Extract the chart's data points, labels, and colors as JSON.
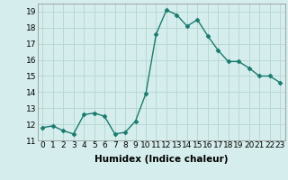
{
  "x": [
    0,
    1,
    2,
    3,
    4,
    5,
    6,
    7,
    8,
    9,
    10,
    11,
    12,
    13,
    14,
    15,
    16,
    17,
    18,
    19,
    20,
    21,
    22,
    23
  ],
  "y": [
    11.8,
    11.9,
    11.6,
    11.4,
    12.6,
    12.7,
    12.5,
    11.4,
    11.5,
    12.2,
    13.9,
    17.6,
    19.1,
    18.8,
    18.1,
    18.5,
    17.5,
    16.6,
    15.9,
    15.9,
    15.5,
    15.0,
    15.0,
    14.6
  ],
  "line_color": "#1a7a6e",
  "marker": "D",
  "marker_size": 2.5,
  "bg_color": "#d5eeed",
  "grid_color": "#b8d8d4",
  "xlabel": "Humidex (Indice chaleur)",
  "ylim": [
    11,
    19.5
  ],
  "xlim": [
    -0.5,
    23.5
  ],
  "yticks": [
    11,
    12,
    13,
    14,
    15,
    16,
    17,
    18,
    19
  ],
  "xticks": [
    0,
    1,
    2,
    3,
    4,
    5,
    6,
    7,
    8,
    9,
    10,
    11,
    12,
    13,
    14,
    15,
    16,
    17,
    18,
    19,
    20,
    21,
    22,
    23
  ],
  "xlabel_fontsize": 7.5,
  "tick_fontsize": 6.5,
  "line_width": 1.0
}
